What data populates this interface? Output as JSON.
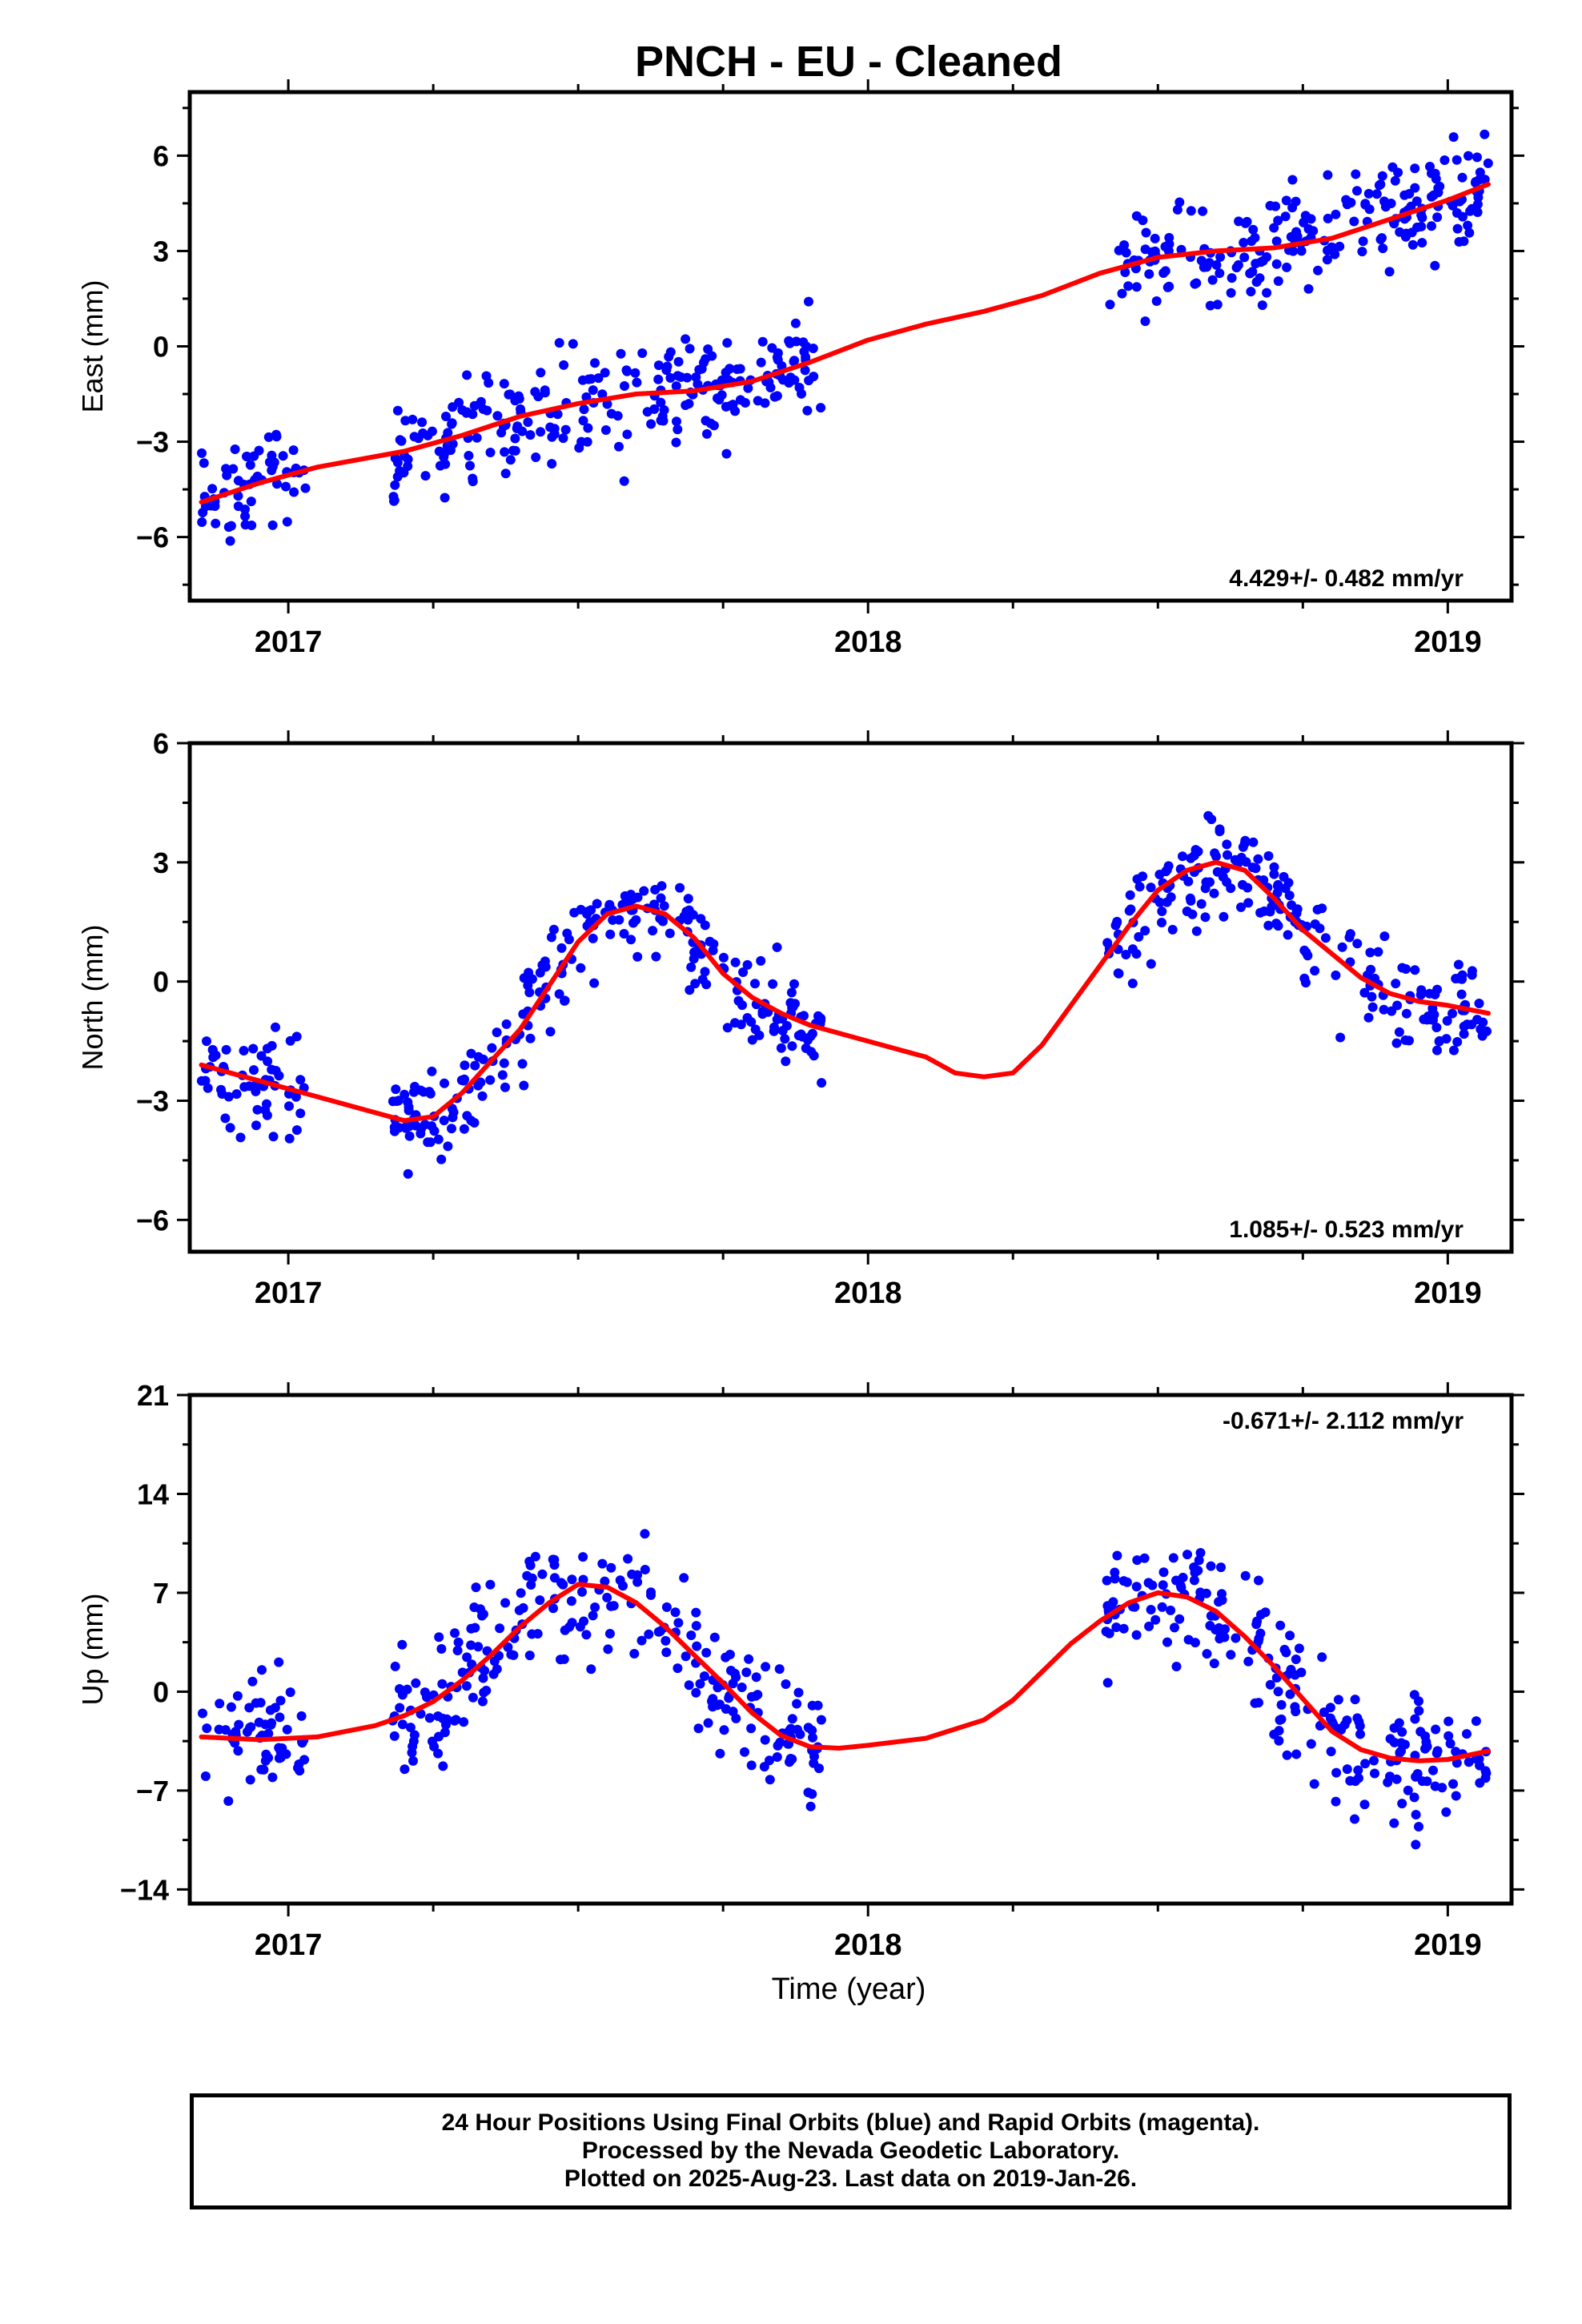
{
  "title": "PNCH  - EU - Cleaned",
  "xlabel": "Time (year)",
  "footer": {
    "line1": "24 Hour Positions Using Final Orbits (blue) and Rapid Orbits (magenta).",
    "line2": "Processed by the Nevada Geodetic Laboratory.",
    "line3": "Plotted on 2025-Aug-23. Last data on 2019-Jan-26."
  },
  "colors": {
    "points": "#0000ff",
    "fit": "#ff0000",
    "axes": "#000000"
  },
  "chart_data": [
    {
      "type": "scatter",
      "ylabel": "East (mm)",
      "rate_label": "4.429+/- 0.482 mm/yr",
      "rate_position": "bottom-right",
      "xlim": [
        2016.83,
        2019.11
      ],
      "ylim": [
        -8,
        8
      ],
      "xticks": [
        2017,
        2018,
        2019
      ],
      "yticks": [
        -6,
        -3,
        0,
        3,
        6
      ],
      "ytick_labels": [
        "−6",
        "−3",
        "0",
        "3",
        "6"
      ],
      "grid": false,
      "data_segments": [
        [
          2016.85,
          2017.03
        ],
        [
          2017.18,
          2017.92
        ],
        [
          2018.41,
          2019.07
        ]
      ],
      "trend": {
        "intercept_year": 2017.0,
        "intercept": -4.4,
        "rate": 4.429
      },
      "seasonal_fit": [
        [
          2016.85,
          -4.9
        ],
        [
          2016.95,
          -4.3
        ],
        [
          2017.05,
          -3.8
        ],
        [
          2017.2,
          -3.3
        ],
        [
          2017.3,
          -2.8
        ],
        [
          2017.4,
          -2.2
        ],
        [
          2017.5,
          -1.8
        ],
        [
          2017.6,
          -1.5
        ],
        [
          2017.7,
          -1.4
        ],
        [
          2017.8,
          -1.1
        ],
        [
          2017.9,
          -0.5
        ],
        [
          2018.0,
          0.2
        ],
        [
          2018.1,
          0.7
        ],
        [
          2018.2,
          1.1
        ],
        [
          2018.3,
          1.6
        ],
        [
          2018.4,
          2.3
        ],
        [
          2018.5,
          2.8
        ],
        [
          2018.6,
          3.0
        ],
        [
          2018.7,
          3.1
        ],
        [
          2018.8,
          3.4
        ],
        [
          2018.9,
          4.0
        ],
        [
          2019.0,
          4.6
        ],
        [
          2019.07,
          5.1
        ]
      ],
      "points": {
        "count": 520,
        "scatter_mm": 1.3,
        "color": "blue"
      }
    },
    {
      "type": "scatter",
      "ylabel": "North (mm)",
      "rate_label": "1.085+/- 0.523 mm/yr",
      "rate_position": "bottom-right",
      "xlim": [
        2016.83,
        2019.11
      ],
      "ylim": [
        -6.8,
        6
      ],
      "xticks": [
        2017,
        2018,
        2019
      ],
      "yticks": [
        -6,
        -3,
        0,
        3,
        6
      ],
      "ytick_labels": [
        "−6",
        "−3",
        "0",
        "3",
        "6"
      ],
      "grid": false,
      "data_segments": [
        [
          2016.85,
          2017.03
        ],
        [
          2017.18,
          2017.92
        ],
        [
          2018.41,
          2019.07
        ]
      ],
      "seasonal_fit": [
        [
          2016.85,
          -2.1
        ],
        [
          2016.95,
          -2.5
        ],
        [
          2017.05,
          -2.9
        ],
        [
          2017.15,
          -3.3
        ],
        [
          2017.2,
          -3.5
        ],
        [
          2017.25,
          -3.4
        ],
        [
          2017.3,
          -2.8
        ],
        [
          2017.35,
          -2.0
        ],
        [
          2017.4,
          -1.2
        ],
        [
          2017.45,
          -0.1
        ],
        [
          2017.5,
          1.0
        ],
        [
          2017.55,
          1.7
        ],
        [
          2017.6,
          1.9
        ],
        [
          2017.65,
          1.7
        ],
        [
          2017.7,
          1.1
        ],
        [
          2017.75,
          0.2
        ],
        [
          2017.8,
          -0.4
        ],
        [
          2017.85,
          -0.8
        ],
        [
          2017.9,
          -1.1
        ],
        [
          2018.0,
          -1.5
        ],
        [
          2018.1,
          -1.9
        ],
        [
          2018.15,
          -2.3
        ],
        [
          2018.2,
          -2.4
        ],
        [
          2018.25,
          -2.3
        ],
        [
          2018.3,
          -1.6
        ],
        [
          2018.35,
          -0.6
        ],
        [
          2018.4,
          0.4
        ],
        [
          2018.45,
          1.4
        ],
        [
          2018.5,
          2.3
        ],
        [
          2018.55,
          2.8
        ],
        [
          2018.6,
          3.0
        ],
        [
          2018.65,
          2.8
        ],
        [
          2018.7,
          2.1
        ],
        [
          2018.75,
          1.3
        ],
        [
          2018.8,
          0.7
        ],
        [
          2018.85,
          0.1
        ],
        [
          2018.9,
          -0.3
        ],
        [
          2018.95,
          -0.5
        ],
        [
          2019.0,
          -0.6
        ],
        [
          2019.07,
          -0.8
        ]
      ],
      "points": {
        "count": 520,
        "scatter_mm": 0.9,
        "color": "blue"
      }
    },
    {
      "type": "scatter",
      "ylabel": "Up (mm)",
      "rate_label": "-0.671+/- 2.112 mm/yr",
      "rate_position": "top-right",
      "xlim": [
        2016.83,
        2019.11
      ],
      "ylim": [
        -15,
        21
      ],
      "xticks": [
        2017,
        2018,
        2019
      ],
      "yticks": [
        -14,
        -7,
        0,
        7,
        14,
        21
      ],
      "ytick_labels": [
        "−14",
        "−7",
        "0",
        "7",
        "14",
        "21"
      ],
      "grid": false,
      "data_segments": [
        [
          2016.85,
          2017.03
        ],
        [
          2017.18,
          2017.92
        ],
        [
          2018.41,
          2019.07
        ]
      ],
      "seasonal_fit": [
        [
          2016.85,
          -3.2
        ],
        [
          2016.95,
          -3.4
        ],
        [
          2017.05,
          -3.2
        ],
        [
          2017.15,
          -2.4
        ],
        [
          2017.2,
          -1.7
        ],
        [
          2017.25,
          -0.7
        ],
        [
          2017.3,
          0.8
        ],
        [
          2017.35,
          2.6
        ],
        [
          2017.4,
          4.6
        ],
        [
          2017.45,
          6.3
        ],
        [
          2017.5,
          7.6
        ],
        [
          2017.55,
          7.4
        ],
        [
          2017.6,
          6.3
        ],
        [
          2017.65,
          4.6
        ],
        [
          2017.7,
          2.6
        ],
        [
          2017.75,
          0.6
        ],
        [
          2017.8,
          -1.5
        ],
        [
          2017.85,
          -3.1
        ],
        [
          2017.9,
          -3.9
        ],
        [
          2017.95,
          -4.0
        ],
        [
          2018.0,
          -3.8
        ],
        [
          2018.1,
          -3.3
        ],
        [
          2018.2,
          -2.0
        ],
        [
          2018.25,
          -0.6
        ],
        [
          2018.3,
          1.4
        ],
        [
          2018.35,
          3.4
        ],
        [
          2018.4,
          5.0
        ],
        [
          2018.45,
          6.3
        ],
        [
          2018.5,
          7.0
        ],
        [
          2018.55,
          6.7
        ],
        [
          2018.6,
          5.7
        ],
        [
          2018.65,
          3.9
        ],
        [
          2018.7,
          1.8
        ],
        [
          2018.75,
          -0.5
        ],
        [
          2018.8,
          -2.8
        ],
        [
          2018.85,
          -4.1
        ],
        [
          2018.9,
          -4.7
        ],
        [
          2018.95,
          -4.9
        ],
        [
          2019.0,
          -4.8
        ],
        [
          2019.07,
          -4.2
        ]
      ],
      "points": {
        "count": 520,
        "scatter_mm": 3.4,
        "color": "blue"
      }
    }
  ]
}
